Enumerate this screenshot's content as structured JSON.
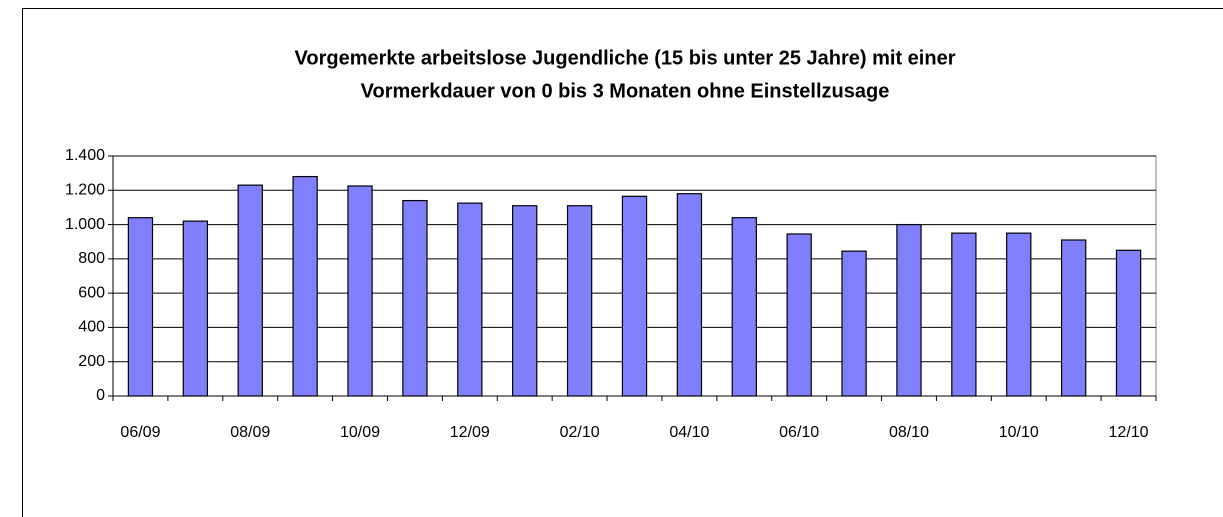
{
  "chart_data": {
    "type": "bar",
    "title": [
      "Vorgemerkte arbeitslose Jugendliche (15 bis unter 25 Jahre) mit einer",
      "Vormerkdauer von 0 bis 3 Monaten ohne Einstellzusage"
    ],
    "categories": [
      "06/09",
      null,
      "08/09",
      null,
      "10/09",
      null,
      "12/09",
      null,
      "02/10",
      null,
      "04/10",
      null,
      "06/10",
      null,
      "08/10",
      null,
      "10/10",
      null,
      "12/10"
    ],
    "values": [
      1040,
      1020,
      1230,
      1280,
      1225,
      1140,
      1125,
      1110,
      1110,
      1165,
      1180,
      1040,
      945,
      845,
      1000,
      950,
      950,
      910,
      850
    ],
    "color": "#8080ff",
    "ylim": [
      0,
      1400
    ],
    "yticks": [
      0,
      200,
      400,
      600,
      800,
      {
        "value": 1000,
        "label": "1.000"
      },
      {
        "value": 1200,
        "label": "1.200"
      },
      {
        "value": 1400,
        "label": "1.400"
      }
    ],
    "grid": true
  }
}
